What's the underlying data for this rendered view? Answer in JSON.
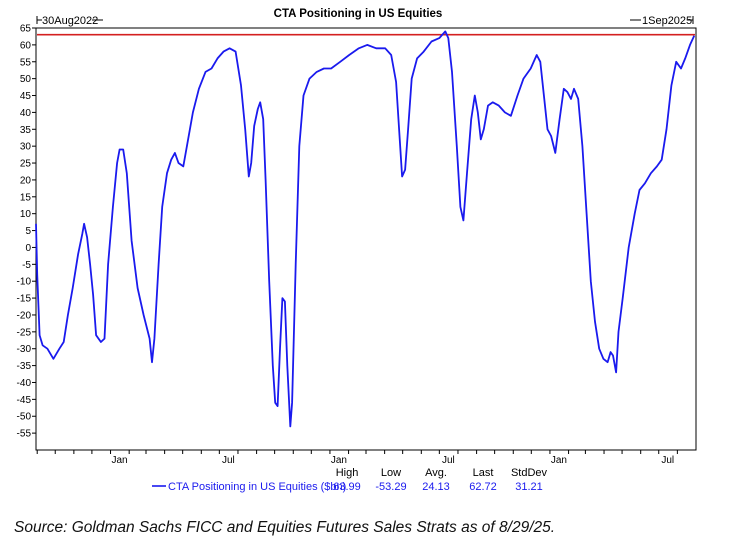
{
  "chart_data": {
    "type": "line",
    "title": "CTA Positioning in US Equities",
    "start_label": "30Aug2022",
    "end_label": "1Sep2025",
    "ylim": [
      -60,
      65
    ],
    "yticks": [
      65,
      60,
      55,
      50,
      45,
      40,
      35,
      30,
      25,
      20,
      15,
      10,
      5,
      0,
      -5,
      -10,
      -15,
      -20,
      -25,
      -30,
      -35,
      -40,
      -45,
      -50,
      -55
    ],
    "xticks": [
      {
        "label": "Jan",
        "date": "2023-01-01"
      },
      {
        "label": "Jul",
        "date": "2023-07-01"
      },
      {
        "label": "Jan",
        "date": "2024-01-01"
      },
      {
        "label": "Jul",
        "date": "2024-07-01"
      },
      {
        "label": "Jan",
        "date": "2025-01-01"
      },
      {
        "label": "Jul",
        "date": "2025-07-01"
      }
    ],
    "grid": false,
    "reference_line": {
      "value": 62.72,
      "color": "#d42020"
    },
    "series": [
      {
        "name": "CTA Positioning in US Equities ($bn)",
        "color": "#1a1aee",
        "points": [
          [
            "2022-08-30",
            7
          ],
          [
            "2022-09-01",
            -8
          ],
          [
            "2022-09-05",
            -26
          ],
          [
            "2022-09-10",
            -29
          ],
          [
            "2022-09-18",
            -30
          ],
          [
            "2022-09-28",
            -33
          ],
          [
            "2022-10-08",
            -30
          ],
          [
            "2022-10-15",
            -28
          ],
          [
            "2022-10-22",
            -20
          ],
          [
            "2022-10-30",
            -12
          ],
          [
            "2022-11-08",
            -2
          ],
          [
            "2022-11-15",
            4
          ],
          [
            "2022-11-18",
            7
          ],
          [
            "2022-11-23",
            3
          ],
          [
            "2022-11-28",
            -5
          ],
          [
            "2022-12-03",
            -14
          ],
          [
            "2022-12-08",
            -26
          ],
          [
            "2022-12-16",
            -28
          ],
          [
            "2022-12-22",
            -27
          ],
          [
            "2022-12-28",
            -5
          ],
          [
            "2023-01-05",
            12
          ],
          [
            "2023-01-12",
            25
          ],
          [
            "2023-01-16",
            29
          ],
          [
            "2023-01-22",
            29
          ],
          [
            "2023-01-28",
            22
          ],
          [
            "2023-02-05",
            2
          ],
          [
            "2023-02-15",
            -12
          ],
          [
            "2023-02-25",
            -20
          ],
          [
            "2023-03-07",
            -27
          ],
          [
            "2023-03-11",
            -34
          ],
          [
            "2023-03-15",
            -27
          ],
          [
            "2023-03-22",
            -5
          ],
          [
            "2023-03-28",
            12
          ],
          [
            "2023-04-05",
            22
          ],
          [
            "2023-04-12",
            26
          ],
          [
            "2023-04-18",
            28
          ],
          [
            "2023-04-24",
            25
          ],
          [
            "2023-05-02",
            24
          ],
          [
            "2023-05-08",
            30
          ],
          [
            "2023-05-18",
            40
          ],
          [
            "2023-05-28",
            47
          ],
          [
            "2023-06-08",
            52
          ],
          [
            "2023-06-18",
            53
          ],
          [
            "2023-06-28",
            56
          ],
          [
            "2023-07-08",
            58
          ],
          [
            "2023-07-18",
            59
          ],
          [
            "2023-07-28",
            58
          ],
          [
            "2023-08-06",
            48
          ],
          [
            "2023-08-13",
            35
          ],
          [
            "2023-08-19",
            21
          ],
          [
            "2023-08-23",
            25
          ],
          [
            "2023-08-28",
            36
          ],
          [
            "2023-09-03",
            41
          ],
          [
            "2023-09-07",
            43
          ],
          [
            "2023-09-12",
            38
          ],
          [
            "2023-09-16",
            20
          ],
          [
            "2023-09-22",
            -10
          ],
          [
            "2023-09-28",
            -35
          ],
          [
            "2023-10-02",
            -46
          ],
          [
            "2023-10-06",
            -47
          ],
          [
            "2023-10-10",
            -30
          ],
          [
            "2023-10-14",
            -15
          ],
          [
            "2023-10-18",
            -16
          ],
          [
            "2023-10-22",
            -35
          ],
          [
            "2023-10-27",
            -53
          ],
          [
            "2023-10-30",
            -46
          ],
          [
            "2023-11-05",
            -5
          ],
          [
            "2023-11-11",
            30
          ],
          [
            "2023-11-18",
            45
          ],
          [
            "2023-11-28",
            50
          ],
          [
            "2023-12-10",
            52
          ],
          [
            "2023-12-22",
            53
          ],
          [
            "2024-01-03",
            53
          ],
          [
            "2024-01-18",
            55
          ],
          [
            "2024-02-02",
            57
          ],
          [
            "2024-02-18",
            59
          ],
          [
            "2024-03-03",
            60
          ],
          [
            "2024-03-18",
            59
          ],
          [
            "2024-04-02",
            59
          ],
          [
            "2024-04-12",
            57
          ],
          [
            "2024-04-20",
            49
          ],
          [
            "2024-04-25",
            35
          ],
          [
            "2024-04-30",
            21
          ],
          [
            "2024-05-05",
            23
          ],
          [
            "2024-05-10",
            35
          ],
          [
            "2024-05-16",
            50
          ],
          [
            "2024-05-25",
            56
          ],
          [
            "2024-06-05",
            58
          ],
          [
            "2024-06-18",
            61
          ],
          [
            "2024-07-01",
            62
          ],
          [
            "2024-07-11",
            64
          ],
          [
            "2024-07-16",
            62
          ],
          [
            "2024-07-22",
            52
          ],
          [
            "2024-07-30",
            30
          ],
          [
            "2024-08-05",
            12
          ],
          [
            "2024-08-10",
            8
          ],
          [
            "2024-08-16",
            22
          ],
          [
            "2024-08-23",
            38
          ],
          [
            "2024-08-29",
            45
          ],
          [
            "2024-09-03",
            40
          ],
          [
            "2024-09-08",
            32
          ],
          [
            "2024-09-13",
            35
          ],
          [
            "2024-09-20",
            42
          ],
          [
            "2024-09-28",
            43
          ],
          [
            "2024-10-08",
            42
          ],
          [
            "2024-10-18",
            40
          ],
          [
            "2024-10-28",
            39
          ],
          [
            "2024-11-08",
            45
          ],
          [
            "2024-11-18",
            50
          ],
          [
            "2024-11-30",
            53
          ],
          [
            "2024-12-10",
            57
          ],
          [
            "2024-12-16",
            55
          ],
          [
            "2024-12-22",
            45
          ],
          [
            "2024-12-28",
            35
          ],
          [
            "2025-01-03",
            33
          ],
          [
            "2025-01-10",
            28
          ],
          [
            "2025-01-17",
            38
          ],
          [
            "2025-01-24",
            47
          ],
          [
            "2025-01-30",
            46
          ],
          [
            "2025-02-05",
            44
          ],
          [
            "2025-02-10",
            47
          ],
          [
            "2025-02-17",
            44
          ],
          [
            "2025-02-24",
            30
          ],
          [
            "2025-03-03",
            10
          ],
          [
            "2025-03-10",
            -10
          ],
          [
            "2025-03-17",
            -22
          ],
          [
            "2025-03-24",
            -30
          ],
          [
            "2025-03-31",
            -33
          ],
          [
            "2025-04-07",
            -34
          ],
          [
            "2025-04-12",
            -31
          ],
          [
            "2025-04-16",
            -32
          ],
          [
            "2025-04-21",
            -37
          ],
          [
            "2025-04-25",
            -25
          ],
          [
            "2025-05-02",
            -15
          ],
          [
            "2025-05-12",
            0
          ],
          [
            "2025-05-22",
            10
          ],
          [
            "2025-05-30",
            17
          ],
          [
            "2025-06-08",
            19
          ],
          [
            "2025-06-18",
            22
          ],
          [
            "2025-06-28",
            24
          ],
          [
            "2025-07-06",
            26
          ],
          [
            "2025-07-14",
            35
          ],
          [
            "2025-07-22",
            48
          ],
          [
            "2025-07-30",
            55
          ],
          [
            "2025-08-07",
            53
          ],
          [
            "2025-08-14",
            56
          ],
          [
            "2025-08-22",
            60
          ],
          [
            "2025-08-29",
            62.7
          ]
        ]
      }
    ],
    "stats": {
      "headers": [
        "High",
        "Low",
        "Avg.",
        "Last",
        "StdDev"
      ],
      "values": [
        "63.99",
        "-53.29",
        "24.13",
        "62.72",
        "31.21"
      ]
    }
  },
  "source_note": "Source: Goldman Sachs FICC and Equities Futures Sales Strats as of 8/29/25."
}
